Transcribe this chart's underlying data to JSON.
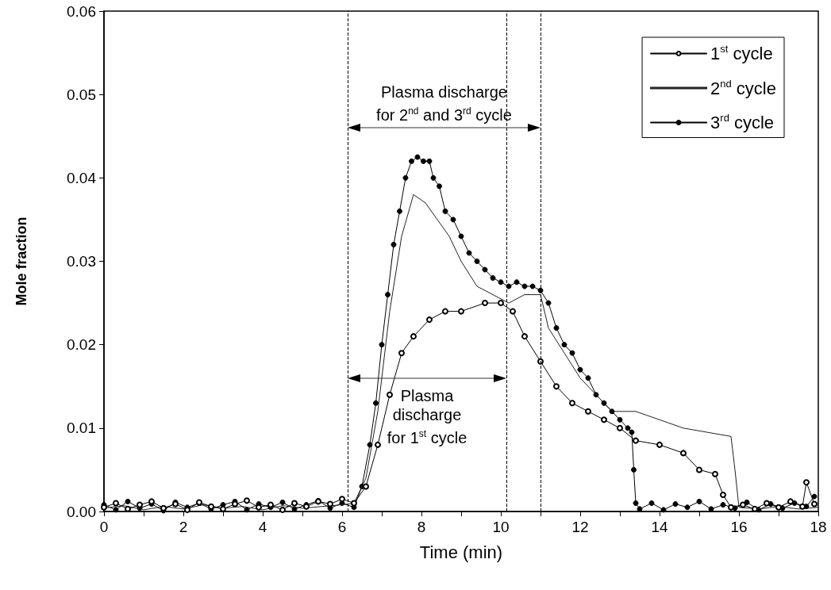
{
  "chart_data": {
    "type": "line",
    "xlabel": "Time (min)",
    "ylabel": "Mole fraction",
    "xlim": [
      0,
      18
    ],
    "ylim": [
      0,
      0.06
    ],
    "xticks": [
      0,
      {
        "value": 1,
        "label": null
      },
      2,
      {
        "value": 3,
        "label": null
      },
      4,
      {
        "value": 5,
        "label": null
      },
      6,
      {
        "value": 7,
        "label": null
      },
      8,
      {
        "value": 9,
        "label": null
      },
      10,
      {
        "value": 11,
        "label": null
      },
      12,
      {
        "value": 13,
        "label": null
      },
      14,
      {
        "value": 15,
        "label": null
      },
      16,
      {
        "value": 17,
        "label": null
      },
      18
    ],
    "yticks": [
      {
        "value": 0,
        "label": "0.00"
      },
      {
        "value": 0.01,
        "label": "0.01"
      },
      {
        "value": 0.02,
        "label": "0.02"
      },
      {
        "value": 0.03,
        "label": "0.03"
      },
      {
        "value": 0.04,
        "label": "0.04"
      },
      {
        "value": 0.05,
        "label": "0.05"
      },
      {
        "value": 0.06,
        "label": "0.06"
      }
    ],
    "grid": false,
    "legend": "top right",
    "line_style": "solid",
    "series": [
      {
        "name": "1$^{st}$ cycle",
        "color": "#000000",
        "marker": "circle",
        "x": [
          0,
          0.3,
          0.6,
          0.9,
          1.2,
          1.5,
          1.8,
          2.1,
          2.4,
          2.7,
          3.0,
          3.3,
          3.6,
          3.9,
          4.2,
          4.5,
          4.8,
          5.1,
          5.4,
          5.7,
          6.0,
          6.3,
          6.6,
          6.9,
          7.2,
          7.5,
          7.8,
          8.2,
          8.6,
          9.0,
          9.6,
          10.0,
          10.3,
          10.6,
          11.0,
          11.4,
          11.8,
          12.2,
          12.6,
          13.0,
          13.4,
          14.0,
          14.6,
          15.0,
          15.4,
          15.6,
          15.8,
          16.1,
          16.4,
          16.7,
          17.0,
          17.3,
          17.6,
          17.7,
          17.9
        ],
        "values": [
          0.0005,
          0.001,
          0.0003,
          0.0008,
          0.0012,
          0.0004,
          0.0009,
          0.0002,
          0.0011,
          0.0006,
          0.0003,
          0.0009,
          0.0013,
          0.0005,
          0.0008,
          0.0002,
          0.001,
          0.0006,
          0.0012,
          0.0009,
          0.0015,
          0.001,
          0.003,
          0.008,
          0.014,
          0.019,
          0.021,
          0.023,
          0.024,
          0.024,
          0.025,
          0.025,
          0.024,
          0.021,
          0.018,
          0.015,
          0.013,
          0.012,
          0.011,
          0.01,
          0.0085,
          0.008,
          0.007,
          0.005,
          0.0045,
          0.002,
          0.0005,
          0.0008,
          0.0003,
          0.001,
          0.0005,
          0.0012,
          0.0006,
          0.0035,
          0.0009
        ]
      },
      {
        "name": "2$^{nd}$ cycle",
        "color": "#222222",
        "marker": "none",
        "x": [
          0,
          0.5,
          1.0,
          1.5,
          2.0,
          2.5,
          3.0,
          3.5,
          4.0,
          4.5,
          5.0,
          5.5,
          6.0,
          6.3,
          6.6,
          6.9,
          7.2,
          7.5,
          7.8,
          8.1,
          8.4,
          8.7,
          9.0,
          9.4,
          9.8,
          10.2,
          10.6,
          11.0,
          11.2,
          11.6,
          12.0,
          12.4,
          12.8,
          13.4,
          14.0,
          14.6,
          15.2,
          15.8,
          15.9,
          16.0,
          16.5,
          17.0,
          17.5,
          18.0
        ],
        "values": [
          0.0004,
          0.0007,
          0.0002,
          0.0006,
          0.0003,
          0.0008,
          0.0004,
          0.0006,
          0.0002,
          0.0007,
          0.0004,
          0.0006,
          0.0008,
          0.001,
          0.004,
          0.012,
          0.024,
          0.033,
          0.038,
          0.037,
          0.035,
          0.033,
          0.03,
          0.027,
          0.026,
          0.025,
          0.026,
          0.026,
          0.022,
          0.019,
          0.016,
          0.014,
          0.012,
          0.012,
          0.011,
          0.01,
          0.0095,
          0.009,
          0.005,
          0.0005,
          0.0003,
          0.0006,
          0.0003,
          0.0005
        ]
      },
      {
        "name": "3$^{rd}$ cycle",
        "color": "#000000",
        "marker": "circle",
        "x": [
          0,
          0.3,
          0.6,
          0.9,
          1.2,
          1.5,
          1.8,
          2.1,
          2.4,
          2.7,
          3.0,
          3.3,
          3.6,
          3.9,
          4.2,
          4.5,
          4.8,
          5.1,
          5.4,
          5.7,
          6.0,
          6.3,
          6.5,
          6.7,
          6.85,
          7.0,
          7.15,
          7.3,
          7.45,
          7.6,
          7.75,
          7.9,
          8.05,
          8.2,
          8.3,
          8.45,
          8.6,
          8.8,
          9.0,
          9.2,
          9.4,
          9.6,
          9.8,
          10.0,
          10.2,
          10.4,
          10.6,
          10.8,
          11.0,
          11.2,
          11.4,
          11.6,
          11.8,
          12.0,
          12.2,
          12.4,
          12.6,
          12.8,
          13.0,
          13.2,
          13.3,
          13.35,
          13.4,
          13.5,
          13.8,
          14.1,
          14.4,
          14.7,
          15.0,
          15.3,
          15.6,
          15.9,
          16.2,
          16.5,
          16.8,
          17.1,
          17.4,
          17.7,
          17.9
        ],
        "values": [
          0.0008,
          0.0002,
          0.0012,
          0.0004,
          0.0009,
          0.0001,
          0.0011,
          0.0005,
          0.001,
          0.0003,
          0.0008,
          0.0012,
          0.0002,
          0.0009,
          0.0005,
          0.0011,
          0.0003,
          0.0008,
          0.0013,
          0.0004,
          0.001,
          0.0005,
          0.003,
          0.008,
          0.013,
          0.02,
          0.026,
          0.032,
          0.036,
          0.04,
          0.042,
          0.0425,
          0.042,
          0.042,
          0.04,
          0.039,
          0.036,
          0.035,
          0.033,
          0.031,
          0.03,
          0.029,
          0.028,
          0.0275,
          0.027,
          0.0275,
          0.027,
          0.027,
          0.0265,
          0.025,
          0.022,
          0.02,
          0.019,
          0.017,
          0.016,
          0.014,
          0.013,
          0.012,
          0.011,
          0.01,
          0.0095,
          0.005,
          0.001,
          0.0003,
          0.001,
          0.0002,
          0.0009,
          0.0005,
          0.0012,
          0.0003,
          0.0008,
          0.0004,
          0.0011,
          0.0002,
          0.0009,
          0.0004,
          0.001,
          0.0006,
          0.0018
        ]
      }
    ],
    "ref_lines": [
      {
        "axis": "x",
        "value": 6.14,
        "line_style": "dashed",
        "color": "#000000"
      },
      {
        "axis": "x",
        "value": 11.0,
        "line_style": "dashed",
        "color": "#000000"
      },
      {
        "axis": "x",
        "value": 10.14,
        "line_style": "dashed",
        "color": "#000000"
      }
    ],
    "annotations": [
      "Plasma discharge\nfor 2$^{nd}$ and 3$^{rd}$ cycle",
      "Plasma\ndischarge\nfor 1$^{st}$ cycle"
    ]
  }
}
